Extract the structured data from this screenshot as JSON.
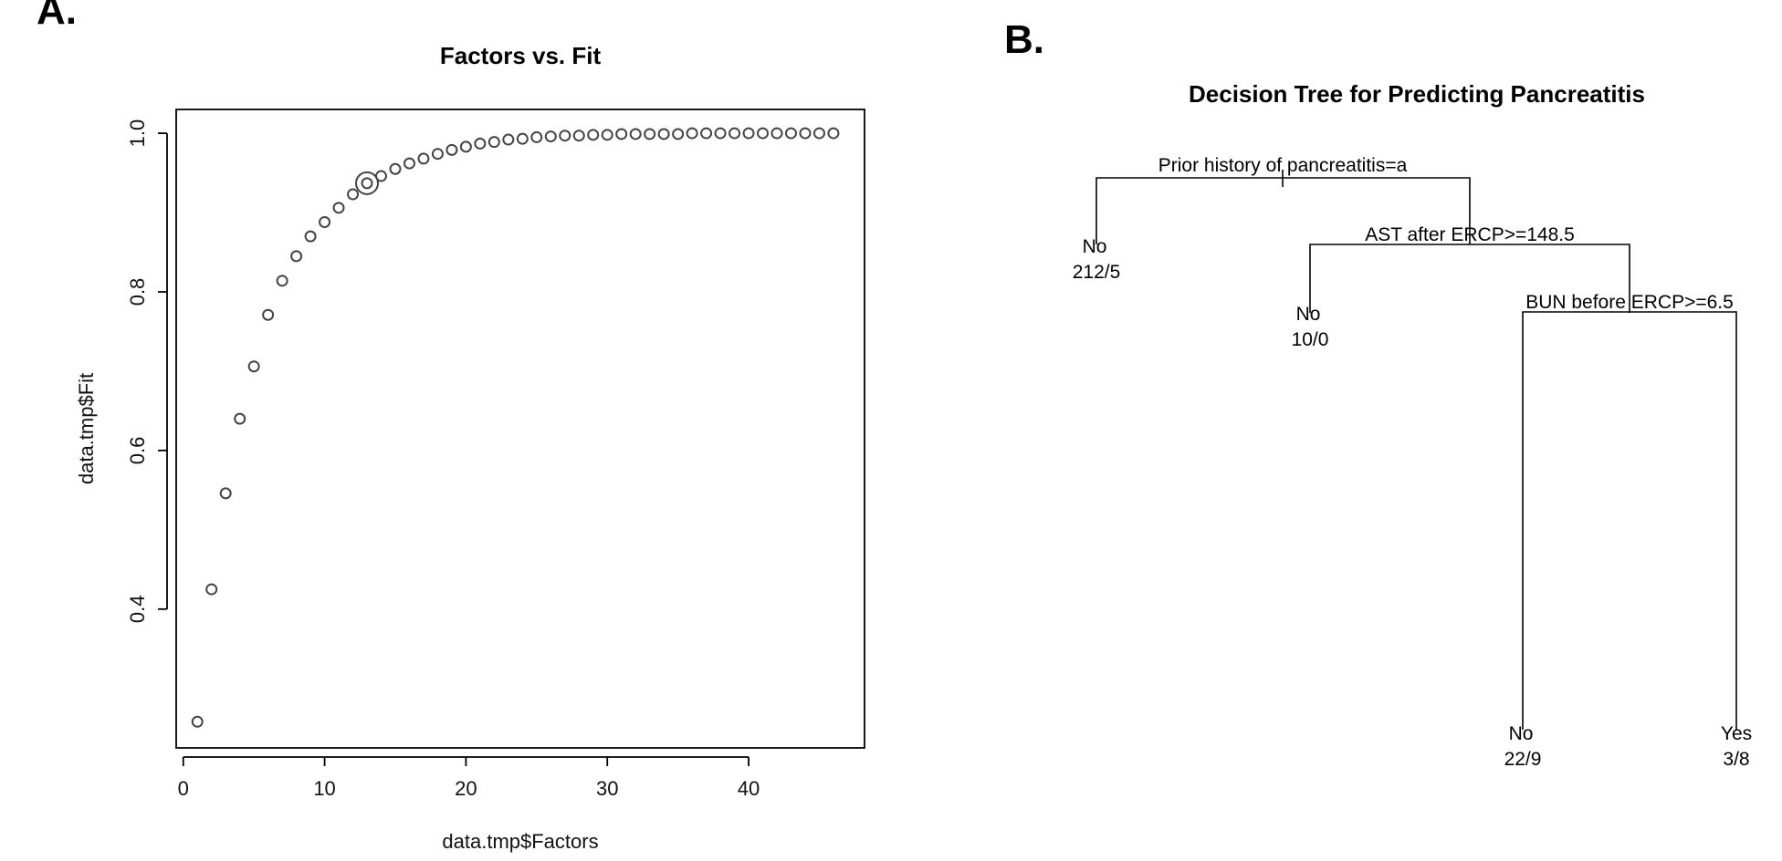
{
  "panels": {
    "a_label": "A.",
    "b_label": "B."
  },
  "chart_data": [
    {
      "type": "scatter",
      "title": "Factors vs. Fit",
      "xlabel": "data.tmp$Factors",
      "ylabel": "data.tmp$Fit",
      "xlim": [
        -0.5,
        48.2
      ],
      "ylim": [
        0.225,
        1.03
      ],
      "x_ticks": [
        0,
        10,
        20,
        30,
        40
      ],
      "y_ticks": [
        0.4,
        0.6,
        0.8,
        1.0
      ],
      "x_tick_labels": [
        "0",
        "10",
        "20",
        "30",
        "40"
      ],
      "y_tick_labels": [
        "0.4",
        "0.6",
        "0.8",
        "1.0"
      ],
      "x": [
        1,
        2,
        3,
        4,
        5,
        6,
        7,
        8,
        9,
        10,
        11,
        12,
        13,
        14,
        15,
        16,
        17,
        18,
        19,
        20,
        21,
        22,
        23,
        24,
        25,
        26,
        27,
        28,
        29,
        30,
        31,
        32,
        33,
        34,
        35,
        36,
        37,
        38,
        39,
        40,
        41,
        42,
        43,
        44,
        45,
        46
      ],
      "y": [
        0.258,
        0.425,
        0.546,
        0.64,
        0.706,
        0.771,
        0.814,
        0.845,
        0.87,
        0.888,
        0.906,
        0.923,
        0.937,
        0.946,
        0.955,
        0.962,
        0.968,
        0.974,
        0.979,
        0.983,
        0.987,
        0.989,
        0.992,
        0.993,
        0.995,
        0.996,
        0.997,
        0.997,
        0.998,
        0.998,
        0.999,
        0.999,
        0.999,
        0.999,
        0.999,
        1.0,
        1.0,
        1.0,
        1.0,
        1.0,
        1.0,
        1.0,
        1.0,
        1.0,
        1.0,
        1.0
      ],
      "highlight": {
        "x": 13,
        "y": 0.937
      },
      "grid": false
    },
    {
      "type": "tree",
      "title": "Decision Tree for Predicting Pancreatitis",
      "splits": [
        "Prior history of pancreatitis=a",
        "AST after ERCP>=148.5",
        "BUN before ERCP>=6.5"
      ],
      "leaves": [
        {
          "label": "No",
          "counts": "212/5"
        },
        {
          "label": "No",
          "counts": "10/0"
        },
        {
          "label": "No",
          "counts": "22/9"
        },
        {
          "label": "Yes",
          "counts": "3/8"
        }
      ]
    }
  ]
}
